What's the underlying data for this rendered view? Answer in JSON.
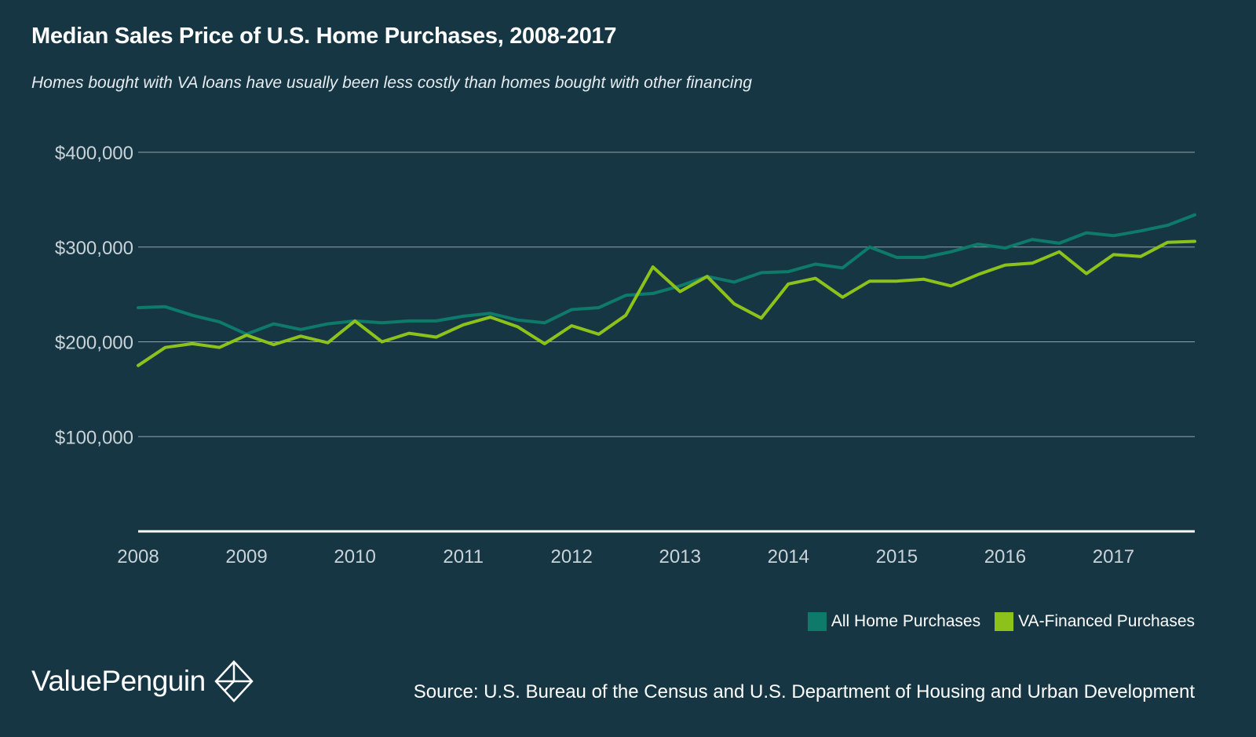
{
  "header": {
    "title": "Median Sales Price of U.S. Home Purchases, 2008-2017",
    "subtitle": "Homes bought with VA loans have usually been less costly than homes bought with other financing"
  },
  "footer": {
    "brand": "ValuePenguin",
    "source": "Source: U.S. Bureau of the Census and U.S. Department of Housing and Urban Development"
  },
  "colors": {
    "background": "#163644",
    "all_purchases": "#0e7a6a",
    "va_purchases": "#8cc21a",
    "grid": "#8ea3ad",
    "axis": "#ffffff"
  },
  "chart_data": {
    "type": "line",
    "title": "Median Sales Price of U.S. Home Purchases, 2008-2017",
    "xlabel": "",
    "ylabel": "",
    "x_ticks": [
      "2008",
      "2009",
      "2010",
      "2011",
      "2012",
      "2013",
      "2014",
      "2015",
      "2016",
      "2017"
    ],
    "y_ticks": [
      "$100,000",
      "$200,000",
      "$300,000",
      "$400,000"
    ],
    "y_tick_values": [
      100000,
      200000,
      300000,
      400000
    ],
    "xlim": [
      2008.0,
      2017.75
    ],
    "ylim": [
      0,
      400000
    ],
    "grid": true,
    "legend": "bottom-right",
    "x": [
      2008.0,
      2008.25,
      2008.5,
      2008.75,
      2009.0,
      2009.25,
      2009.5,
      2009.75,
      2010.0,
      2010.25,
      2010.5,
      2010.75,
      2011.0,
      2011.25,
      2011.5,
      2011.75,
      2012.0,
      2012.25,
      2012.5,
      2012.75,
      2013.0,
      2013.25,
      2013.5,
      2013.75,
      2014.0,
      2014.25,
      2014.5,
      2014.75,
      2015.0,
      2015.25,
      2015.5,
      2015.75,
      2016.0,
      2016.25,
      2016.5,
      2016.75,
      2017.0,
      2017.25,
      2017.5,
      2017.75
    ],
    "series": [
      {
        "name": "All Home Purchases",
        "values": [
          236000,
          237000,
          228000,
          221000,
          208000,
          219000,
          213000,
          219000,
          222000,
          220000,
          222000,
          222000,
          227000,
          230000,
          223000,
          220000,
          234000,
          236000,
          249000,
          251000,
          259000,
          269000,
          263000,
          273000,
          274000,
          282000,
          278000,
          300000,
          289000,
          289000,
          295000,
          303000,
          299000,
          308000,
          304000,
          315000,
          312000,
          317000,
          323000,
          334000
        ]
      },
      {
        "name": "VA-Financed Purchases",
        "values": [
          175000,
          194000,
          198000,
          194000,
          207000,
          197000,
          206000,
          199000,
          222000,
          200000,
          209000,
          205000,
          218000,
          226000,
          216000,
          198000,
          217000,
          208000,
          228000,
          279000,
          253000,
          269000,
          240000,
          225000,
          261000,
          267000,
          247000,
          264000,
          264000,
          266000,
          259000,
          271000,
          281000,
          283000,
          295000,
          272000,
          292000,
          290000,
          305000,
          306000
        ]
      }
    ]
  }
}
